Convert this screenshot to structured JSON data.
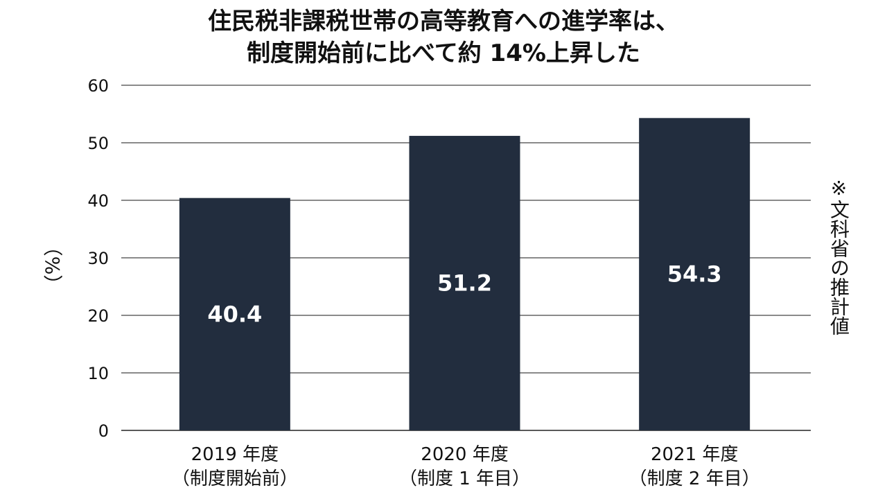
{
  "chart_data": {
    "type": "bar",
    "title_lines": [
      "住民税非課税世帯の高等教育への進学率は、",
      "制度開始前に比べて約 14%上昇した"
    ],
    "categories": [
      [
        "2019 年度",
        "（制度開始前）"
      ],
      [
        "2020 年度",
        "（制度 1 年目）"
      ],
      [
        "2021 年度",
        "（制度 2 年目）"
      ]
    ],
    "values": [
      40.4,
      51.2,
      54.3
    ],
    "value_labels": [
      "40.4",
      "51.2",
      "54.3"
    ],
    "ylabel": "（%）",
    "ylim": [
      0,
      60
    ],
    "yticks": [
      0,
      10,
      20,
      30,
      40,
      50,
      60
    ],
    "grid": true,
    "bar_color": "#222d3e",
    "note": "※文科省の推計値"
  }
}
